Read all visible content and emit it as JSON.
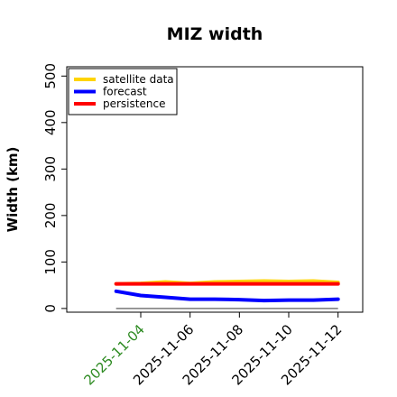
{
  "chart_data": {
    "type": "line",
    "title": "MIZ width",
    "ylabel": "Width (km)",
    "xlabel": "",
    "ylim": [
      -8,
      520
    ],
    "xlim": [
      "2025-11-01T00:00",
      "2025-11-13T00:00"
    ],
    "yticks": [
      0,
      100,
      200,
      300,
      400,
      500
    ],
    "x": [
      "2025-11-03",
      "2025-11-04",
      "2025-11-05",
      "2025-11-06",
      "2025-11-07",
      "2025-11-08",
      "2025-11-09",
      "2025-11-10",
      "2025-11-11",
      "2025-11-12"
    ],
    "xtick_labels": [
      "2025-11-04",
      "2025-11-06",
      "2025-11-08",
      "2025-11-10",
      "2025-11-12"
    ],
    "xtick_values": [
      "2025-11-04",
      "2025-11-06",
      "2025-11-08",
      "2025-11-10",
      "2025-11-12"
    ],
    "xtick_colors": [
      "#2e8b22",
      "#000000",
      "#000000",
      "#000000",
      "#000000"
    ],
    "grid": false,
    "legend_position": "top-left",
    "baseline": {
      "value": 0,
      "color": "#777777"
    },
    "series": [
      {
        "name": "satellite data",
        "color": "#ffd400",
        "values": [
          53,
          54,
          57,
          54,
          57,
          58,
          59,
          58,
          59,
          56
        ]
      },
      {
        "name": "forecast",
        "color": "#0000ff",
        "values": [
          37,
          28,
          24,
          20,
          20,
          19,
          17,
          18,
          18,
          20
        ]
      },
      {
        "name": "persistence",
        "color": "#ff0000",
        "values": [
          53,
          53,
          53,
          53,
          53,
          53,
          53,
          53,
          53,
          53
        ]
      }
    ]
  }
}
